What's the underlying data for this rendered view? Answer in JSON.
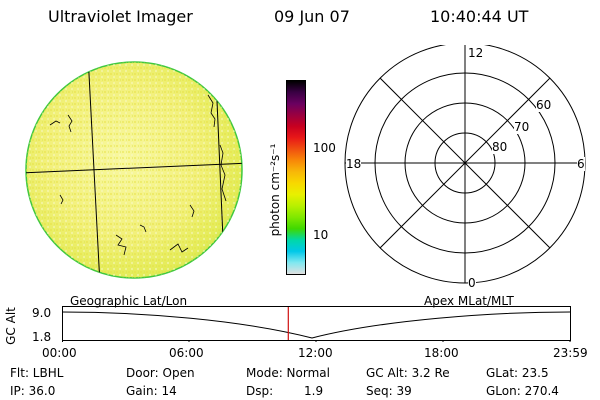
{
  "header": {
    "instrument": "Ultraviolet Imager",
    "date": "09 Jun 07",
    "time": "10:40:44 UT"
  },
  "colorbar": {
    "unit_label": "photon cm⁻²s⁻¹",
    "ticks": [
      "100",
      "10"
    ],
    "colors": [
      "#000000",
      "#3a0044",
      "#6a0060",
      "#9a0040",
      "#c80020",
      "#e81818",
      "#f05010",
      "#f88808",
      "#f8b808",
      "#f8d800",
      "#e8f000",
      "#b8f000",
      "#80e800",
      "#40d800",
      "#00d8a8",
      "#00c8e8",
      "#80e8f0",
      "#e0e0e0"
    ]
  },
  "polar_grid": {
    "mlt_labels": {
      "top": "12",
      "left": "18",
      "right": "6",
      "bottom": "0"
    },
    "lat_labels": [
      "60",
      "70",
      "80"
    ]
  },
  "timeline": {
    "left_title": "Geographic Lat/Lon",
    "right_title": "Apex MLat/MLT",
    "axis_label": "GC Alt",
    "y_ticks": [
      "9.0",
      "1.8"
    ],
    "x_ticks": [
      "00:00",
      "06:00",
      "12:00",
      "18:00",
      "23:59"
    ],
    "marker_time": "10:40:44",
    "marker_color": "#d01010"
  },
  "info": {
    "filter": "Flt: LBHL",
    "ip": "IP: 36.0",
    "door": "Door: Open",
    "gain": "Gain: 14",
    "mode": "Mode: Normal",
    "dsp_label": "Dsp:",
    "dsp_value": "1.9",
    "gc_alt": "GC Alt: 3.2 Re",
    "seq": "Seq: 39",
    "glat": "GLat: 23.5",
    "glon": "GLon: 270.4"
  }
}
